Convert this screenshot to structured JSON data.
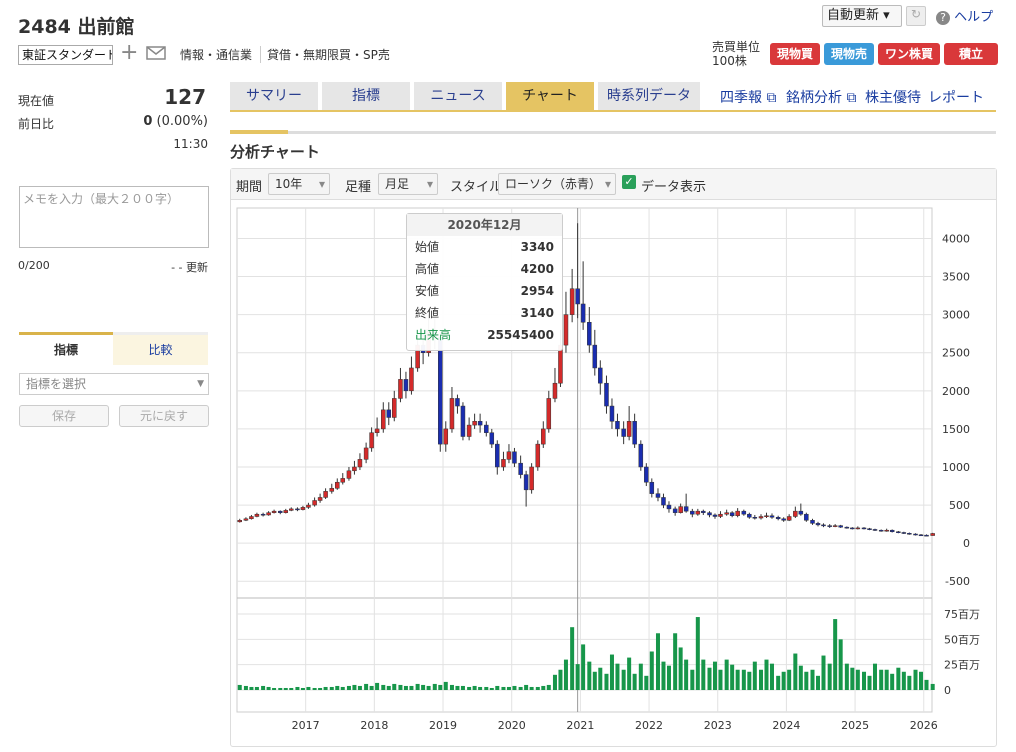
{
  "header": {
    "code_name": "2484 出前館",
    "auto_update": "自動更新",
    "help": "ヘルプ",
    "market": "東証スタンダード",
    "industry": "情報・通信業",
    "margin": "貸借・無期限買・SP売",
    "unit_label": "売買単位",
    "unit": "100株",
    "buttons": [
      "現物買",
      "現物売",
      "ワン株買",
      "積立"
    ]
  },
  "quote": {
    "price_label": "現在値",
    "price": 127,
    "change_label": "前日比",
    "change": 0,
    "change_pct": "(0.00%)",
    "time": "11:30"
  },
  "memo": {
    "placeholder": "メモを入力（最大２００字）",
    "count": "0/200",
    "updated": "- - 更新"
  },
  "indicator": {
    "tabs": [
      "指標",
      "比較"
    ],
    "select": "指標を選択",
    "save": "保存",
    "reset": "元に戻す"
  },
  "tabs": [
    "サマリー",
    "指標",
    "ニュース",
    "チャート",
    "時系列データ"
  ],
  "links": [
    "四季報",
    "銘柄分析",
    "株主優待",
    "レポート"
  ],
  "section_title": "分析チャート",
  "controls": {
    "period_label": "期間",
    "period": "10年",
    "bar_label": "足種",
    "bar": "月足",
    "style_label": "スタイル",
    "style": "ローソク（赤青）",
    "show_data": "データ表示"
  },
  "chart_data": {
    "type": "candlestick",
    "grid": true,
    "up_color": "#d42a2a",
    "down_color": "#1a2db0",
    "xlim": [
      2016.0,
      2026.12
    ],
    "xticks": [
      2017,
      2018,
      2019,
      2020,
      2021,
      2022,
      2023,
      2024,
      2025,
      2026
    ],
    "ylim": [
      -720,
      4400
    ],
    "yticks": [
      -500,
      0,
      500,
      1000,
      1500,
      2000,
      2500,
      3000,
      3500,
      4000
    ],
    "x": [
      2016.04,
      2016.13,
      2016.21,
      2016.29,
      2016.38,
      2016.46,
      2016.54,
      2016.63,
      2016.71,
      2016.79,
      2016.88,
      2016.96,
      2017.04,
      2017.13,
      2017.21,
      2017.29,
      2017.38,
      2017.46,
      2017.54,
      2017.63,
      2017.71,
      2017.79,
      2017.88,
      2017.96,
      2018.04,
      2018.13,
      2018.21,
      2018.29,
      2018.38,
      2018.46,
      2018.54,
      2018.63,
      2018.71,
      2018.79,
      2018.88,
      2018.96,
      2019.04,
      2019.13,
      2019.21,
      2019.29,
      2019.38,
      2019.46,
      2019.54,
      2019.63,
      2019.71,
      2019.79,
      2019.88,
      2019.96,
      2020.04,
      2020.13,
      2020.21,
      2020.29,
      2020.38,
      2020.46,
      2020.54,
      2020.63,
      2020.71,
      2020.79,
      2020.88,
      2020.96,
      2021.04,
      2021.13,
      2021.21,
      2021.29,
      2021.38,
      2021.46,
      2021.54,
      2021.63,
      2021.71,
      2021.79,
      2021.88,
      2021.96,
      2022.04,
      2022.13,
      2022.21,
      2022.29,
      2022.38,
      2022.46,
      2022.54,
      2022.63,
      2022.71,
      2022.79,
      2022.88,
      2022.96,
      2023.04,
      2023.13,
      2023.21,
      2023.29,
      2023.38,
      2023.46,
      2023.54,
      2023.63,
      2023.71,
      2023.79,
      2023.88,
      2023.96,
      2024.04,
      2024.13,
      2024.21,
      2024.29,
      2024.38,
      2024.46,
      2024.54,
      2024.63,
      2024.71,
      2024.79,
      2024.88,
      2024.96,
      2025.04,
      2025.13,
      2025.21,
      2025.29,
      2025.38,
      2025.46,
      2025.54,
      2025.63,
      2025.71,
      2025.79,
      2025.88,
      2025.96,
      2026.04,
      2026.13
    ],
    "open": [
      280,
      300,
      320,
      350,
      380,
      370,
      400,
      420,
      400,
      430,
      450,
      440,
      470,
      500,
      560,
      600,
      680,
      720,
      800,
      850,
      950,
      1000,
      1100,
      1250,
      1450,
      1500,
      1750,
      1650,
      1900,
      2150,
      2000,
      2300,
      2600,
      2500,
      2800,
      2700,
      1300,
      1500,
      1900,
      1800,
      1400,
      1550,
      1600,
      1550,
      1450,
      1300,
      1000,
      1100,
      1200,
      1050,
      900,
      700,
      1000,
      1300,
      1500,
      1900,
      2100,
      2600,
      3000,
      3340,
      3140,
      2900,
      2600,
      2300,
      2100,
      1800,
      1600,
      1500,
      1400,
      1600,
      1300,
      1000,
      800,
      650,
      600,
      500,
      450,
      400,
      480,
      420,
      380,
      420,
      400,
      370,
      350,
      380,
      400,
      360,
      420,
      380,
      340,
      330,
      350,
      360,
      340,
      320,
      300,
      350,
      420,
      380,
      300,
      260,
      240,
      230,
      220,
      230,
      210,
      200,
      190,
      200,
      190,
      180,
      170,
      160,
      170,
      150,
      140,
      130,
      120,
      110,
      105,
      100
    ],
    "high": [
      320,
      340,
      370,
      400,
      400,
      420,
      440,
      430,
      450,
      470,
      470,
      490,
      530,
      600,
      650,
      720,
      780,
      850,
      920,
      1000,
      1080,
      1180,
      1320,
      1520,
      1650,
      1850,
      1850,
      2000,
      2300,
      2250,
      2450,
      2800,
      2750,
      3000,
      2950,
      2750,
      1600,
      2050,
      1950,
      1850,
      1650,
      1700,
      1700,
      1600,
      1500,
      1350,
      1200,
      1300,
      1250,
      1150,
      950,
      1050,
      1350,
      1600,
      2000,
      2300,
      2800,
      3300,
      3600,
      4200,
      3700,
      3100,
      2800,
      2400,
      2200,
      1900,
      1700,
      1600,
      1800,
      1700,
      1350,
      1050,
      850,
      720,
      650,
      550,
      480,
      520,
      650,
      450,
      450,
      440,
      420,
      390,
      420,
      440,
      420,
      460,
      440,
      400,
      370,
      380,
      400,
      390,
      360,
      340,
      380,
      480,
      520,
      400,
      320,
      280,
      260,
      250,
      250,
      240,
      220,
      210,
      220,
      210,
      200,
      190,
      180,
      190,
      180,
      160,
      150,
      140,
      130,
      120,
      115,
      135
    ],
    "low": [
      270,
      290,
      310,
      340,
      350,
      360,
      390,
      380,
      390,
      420,
      420,
      430,
      450,
      480,
      530,
      580,
      650,
      700,
      770,
      820,
      900,
      960,
      1050,
      1200,
      1400,
      1450,
      1550,
      1600,
      1850,
      1900,
      1950,
      2250,
      2350,
      2450,
      2550,
      1200,
      1200,
      1450,
      1700,
      1350,
      1350,
      1500,
      1450,
      1400,
      1250,
      900,
      950,
      1050,
      1000,
      850,
      480,
      650,
      950,
      1250,
      1450,
      1850,
      2050,
      2500,
      2900,
      2954,
      2800,
      2500,
      2200,
      1950,
      1700,
      1500,
      1400,
      1300,
      1350,
      1250,
      950,
      750,
      600,
      550,
      460,
      400,
      360,
      390,
      400,
      340,
      360,
      370,
      340,
      320,
      330,
      360,
      340,
      340,
      360,
      320,
      310,
      310,
      330,
      320,
      300,
      280,
      290,
      330,
      360,
      280,
      240,
      220,
      210,
      200,
      210,
      200,
      190,
      180,
      180,
      180,
      170,
      160,
      150,
      150,
      140,
      130,
      120,
      110,
      100,
      100,
      95,
      98
    ],
    "close": [
      300,
      320,
      350,
      380,
      370,
      400,
      420,
      400,
      430,
      450,
      440,
      470,
      500,
      560,
      600,
      680,
      720,
      800,
      850,
      950,
      1000,
      1100,
      1250,
      1450,
      1500,
      1750,
      1650,
      1900,
      2150,
      2000,
      2300,
      2600,
      2500,
      2800,
      2700,
      1300,
      1500,
      1900,
      1800,
      1400,
      1550,
      1600,
      1550,
      1450,
      1300,
      1000,
      1100,
      1200,
      1050,
      900,
      700,
      1000,
      1300,
      1500,
      1900,
      2100,
      2600,
      3000,
      3340,
      3140,
      2900,
      2600,
      2300,
      2100,
      1800,
      1600,
      1500,
      1400,
      1600,
      1300,
      1000,
      800,
      650,
      600,
      500,
      450,
      400,
      480,
      420,
      380,
      420,
      400,
      370,
      350,
      380,
      400,
      360,
      420,
      380,
      340,
      330,
      350,
      360,
      340,
      320,
      300,
      350,
      420,
      380,
      300,
      260,
      240,
      230,
      220,
      230,
      210,
      200,
      190,
      200,
      190,
      180,
      170,
      160,
      170,
      150,
      140,
      130,
      120,
      110,
      105,
      100,
      127
    ],
    "volume": {
      "color": "#17964a",
      "ylim": [
        -21700000,
        90800000
      ],
      "yticks": [
        0,
        {
          "value": 25000000,
          "label": "25百万"
        },
        {
          "value": 50000000,
          "label": "50百万"
        },
        {
          "value": 75000000,
          "label": "75百万"
        }
      ],
      "values": [
        5000000,
        4000000,
        3000000,
        3000000,
        4000000,
        3000000,
        2000000,
        2000000,
        2000000,
        2000000,
        3000000,
        2000000,
        3000000,
        2000000,
        2000000,
        3000000,
        3000000,
        4000000,
        3000000,
        4000000,
        5000000,
        4000000,
        6000000,
        4000000,
        7000000,
        5000000,
        4000000,
        6000000,
        5000000,
        4000000,
        4000000,
        6000000,
        5000000,
        4000000,
        6000000,
        5000000,
        8000000,
        5000000,
        4000000,
        4000000,
        3000000,
        4000000,
        3000000,
        3000000,
        2000000,
        4000000,
        3000000,
        3000000,
        4000000,
        3000000,
        5000000,
        3000000,
        3000000,
        4000000,
        5000000,
        15000000,
        20000000,
        30000000,
        62000000,
        25545400,
        45000000,
        28000000,
        18000000,
        22000000,
        16000000,
        35000000,
        26000000,
        20000000,
        32000000,
        16000000,
        26000000,
        14000000,
        38000000,
        56000000,
        28000000,
        24000000,
        56000000,
        42000000,
        30000000,
        20000000,
        72000000,
        30000000,
        22000000,
        28000000,
        20000000,
        30000000,
        25000000,
        20000000,
        20000000,
        18000000,
        28000000,
        20000000,
        30000000,
        26000000,
        14000000,
        18000000,
        20000000,
        36000000,
        24000000,
        18000000,
        20000000,
        14000000,
        34000000,
        26000000,
        70000000,
        50000000,
        26000000,
        22000000,
        20000000,
        18000000,
        14000000,
        26000000,
        20000000,
        20000000,
        16000000,
        22000000,
        18000000,
        14000000,
        20000000,
        18000000,
        10000000,
        6000000
      ]
    },
    "tooltip": {
      "title": "2020年12月",
      "labels": [
        "始値",
        "高値",
        "安値",
        "終値",
        "出来高"
      ]
    }
  }
}
